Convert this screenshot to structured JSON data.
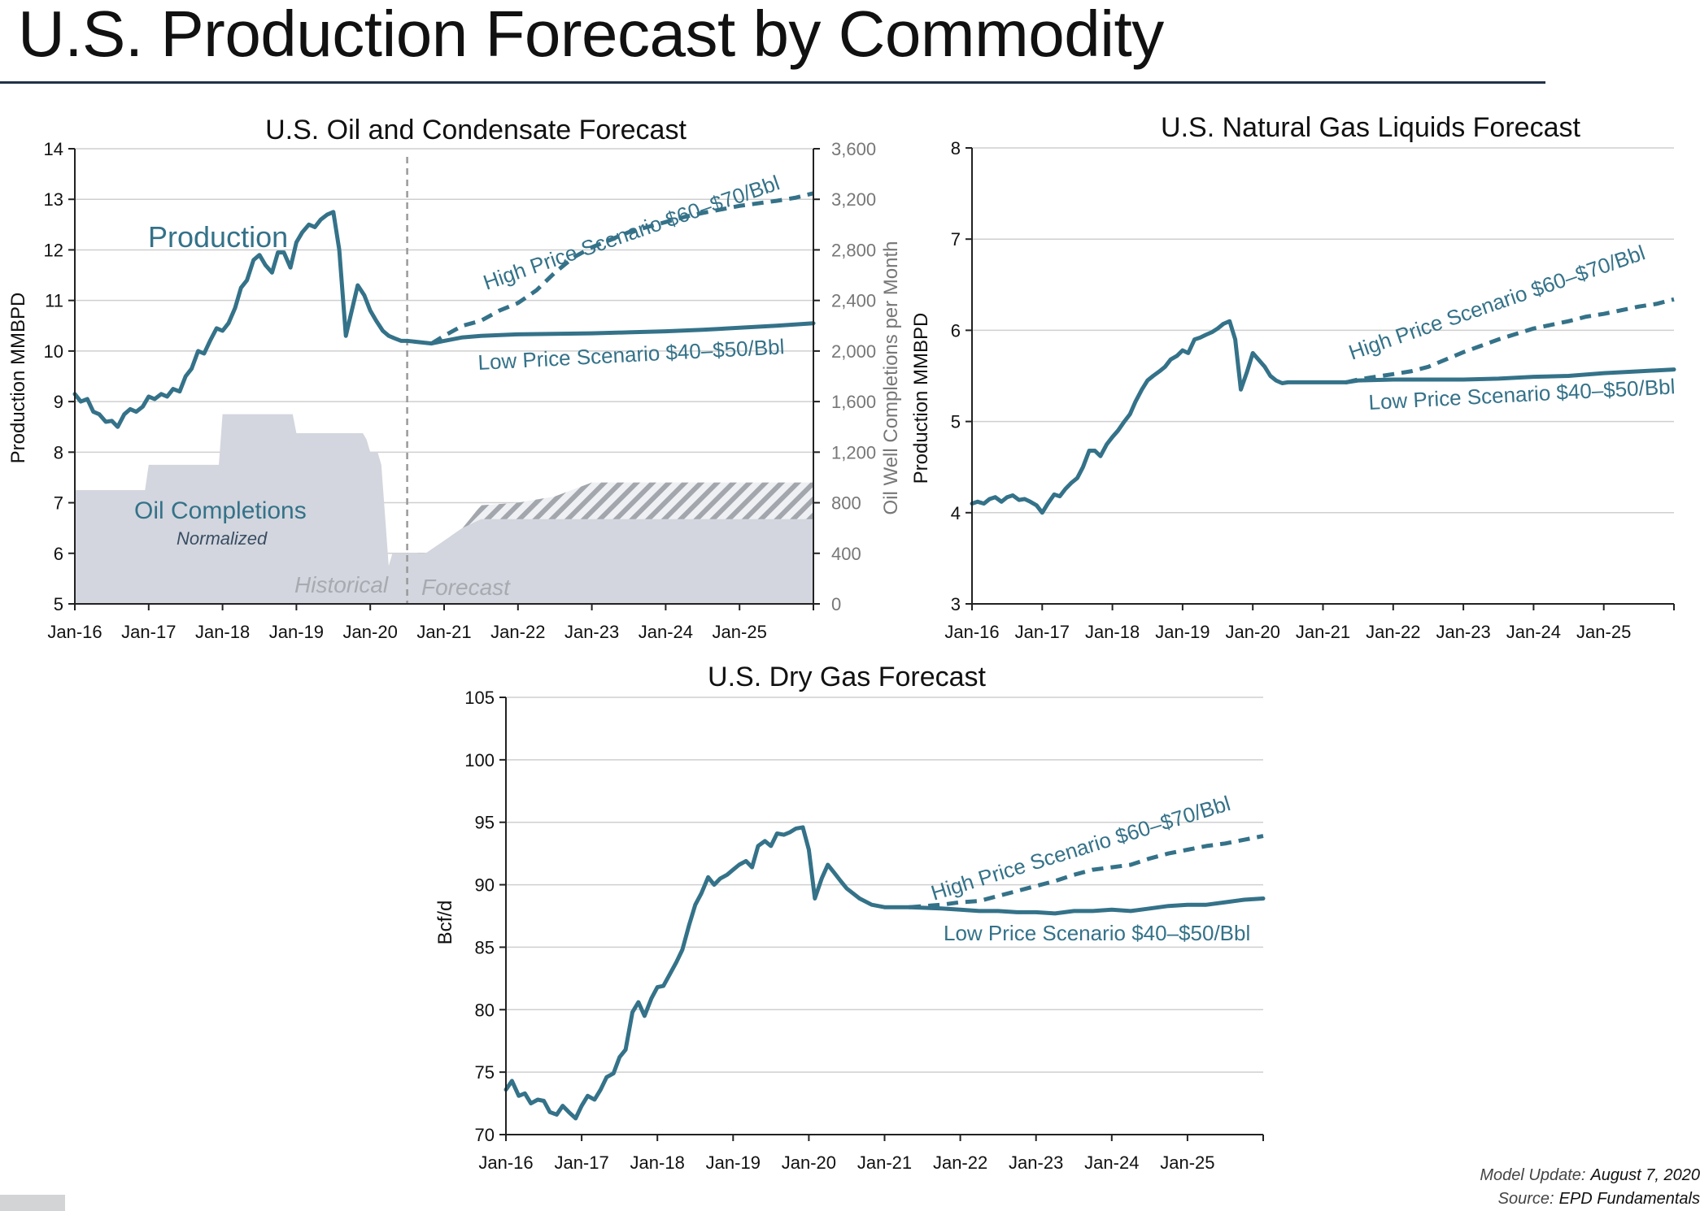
{
  "page": {
    "title": "U.S. Production Forecast by Commodity",
    "footer": {
      "model_update_label": "Model Update:",
      "model_update_value": "August 7, 2020",
      "source_label": "Source:",
      "source_value": "EPD Fundamentals"
    },
    "colors": {
      "series": "#347289",
      "completions_area": "#d3d6de",
      "hatch": "#a3a7ad",
      "title_rule": "#1f3247"
    }
  },
  "chart_data": [
    {
      "id": "oil",
      "type": "line",
      "title": "U.S. Oil and Condensate Forecast",
      "ylabel": "Production MMBPD",
      "ylim": [
        5,
        14
      ],
      "yticks": [
        "5",
        "6",
        "7",
        "8",
        "9",
        "10",
        "11",
        "12",
        "13",
        "14"
      ],
      "y2label": "Oil Well Completions per Month",
      "y2lim": [
        0,
        3600
      ],
      "y2ticks": [
        "0",
        "400",
        "800",
        "1,200",
        "1,600",
        "2,000",
        "2,400",
        "2,800",
        "3,200",
        "3,600"
      ],
      "xlim": [
        2016,
        2026
      ],
      "xticks": [
        "Jan-16",
        "Jan-17",
        "Jan-18",
        "Jan-19",
        "Jan-20",
        "Jan-21",
        "Jan-22",
        "Jan-23",
        "Jan-24",
        "Jan-25"
      ],
      "grid": true,
      "divider_x": 2020.5,
      "annotations": {
        "production": "Production",
        "completions": "Oil Completions",
        "completions_sub": "Normalized",
        "historical": "Historical",
        "forecast": "Forecast",
        "high": "High Price Scenario $60–$70/Bbl",
        "low": "Low Price Scenario $40–$50/Bbl"
      },
      "series": [
        {
          "role": "history",
          "x": [
            2016.0,
            2016.08,
            2016.17,
            2016.25,
            2016.33,
            2016.42,
            2016.5,
            2016.58,
            2016.67,
            2016.75,
            2016.83,
            2016.92,
            2017.0,
            2017.08,
            2017.17,
            2017.25,
            2017.33,
            2017.42,
            2017.5,
            2017.58,
            2017.67,
            2017.75,
            2017.83,
            2017.92,
            2018.0,
            2018.08,
            2018.17,
            2018.25,
            2018.33,
            2018.42,
            2018.5,
            2018.58,
            2018.67,
            2018.75,
            2018.83,
            2018.92,
            2019.0,
            2019.08,
            2019.17,
            2019.25,
            2019.33,
            2019.42,
            2019.5,
            2019.58,
            2019.67,
            2019.75,
            2019.83,
            2019.92,
            2020.0,
            2020.08,
            2020.17,
            2020.25,
            2020.33,
            2020.42,
            2020.5
          ],
          "values": [
            9.15,
            9.0,
            9.05,
            8.8,
            8.75,
            8.6,
            8.62,
            8.5,
            8.75,
            8.85,
            8.8,
            8.9,
            9.1,
            9.05,
            9.15,
            9.1,
            9.25,
            9.2,
            9.5,
            9.65,
            10.0,
            9.95,
            10.2,
            10.45,
            10.4,
            10.55,
            10.85,
            11.25,
            11.4,
            11.8,
            11.9,
            11.7,
            11.55,
            11.95,
            11.95,
            11.65,
            12.15,
            12.35,
            12.5,
            12.45,
            12.6,
            12.7,
            12.75,
            12.0,
            10.3,
            10.8,
            11.3,
            11.1,
            10.8,
            10.6,
            10.4,
            10.3,
            10.25,
            10.2,
            10.2
          ]
        },
        {
          "role": "low",
          "name": "Low Price Scenario $40–$50/Bbl",
          "x": [
            2020.5,
            2020.83,
            2021.0,
            2021.25,
            2021.5,
            2022.0,
            2022.5,
            2023.0,
            2023.5,
            2024.0,
            2024.5,
            2025.0,
            2025.5,
            2026.0
          ],
          "values": [
            10.2,
            10.15,
            10.2,
            10.27,
            10.3,
            10.33,
            10.34,
            10.35,
            10.37,
            10.39,
            10.42,
            10.46,
            10.5,
            10.55
          ]
        },
        {
          "role": "high",
          "name": "High Price Scenario $60–$70/Bbl",
          "x": [
            2020.83,
            2021.0,
            2021.25,
            2021.5,
            2021.75,
            2022.0,
            2022.25,
            2022.5,
            2022.75,
            2023.0,
            2023.25,
            2023.5,
            2023.75,
            2024.0,
            2024.25,
            2024.5,
            2024.75,
            2025.0,
            2025.25,
            2025.5,
            2025.75,
            2026.0
          ],
          "values": [
            10.15,
            10.3,
            10.5,
            10.6,
            10.8,
            10.95,
            11.2,
            11.55,
            11.85,
            12.05,
            12.2,
            12.35,
            12.45,
            12.55,
            12.65,
            12.73,
            12.8,
            12.87,
            12.92,
            12.97,
            13.03,
            13.12
          ]
        },
        {
          "role": "completions_history",
          "name": "Oil Completions",
          "x": [
            2016.0,
            2016.95,
            2017.0,
            2017.95,
            2018.0,
            2018.95,
            2019.0,
            2019.9,
            2019.95,
            2020.0,
            2020.1,
            2020.15,
            2020.25,
            2020.3,
            2020.5
          ],
          "values": [
            900,
            900,
            1100,
            1100,
            1500,
            1500,
            1350,
            1350,
            1300,
            1200,
            1200,
            1100,
            300,
            400,
            400
          ]
        },
        {
          "role": "completions_low",
          "x": [
            2020.5,
            2020.75,
            2021.0,
            2021.25,
            2021.5,
            2026.0
          ],
          "values": [
            400,
            400,
            500,
            600,
            670,
            670
          ]
        },
        {
          "role": "completions_high",
          "x": [
            2020.5,
            2020.75,
            2021.0,
            2021.25,
            2021.5,
            2022.0,
            2022.5,
            2023.0,
            2026.0
          ],
          "values": [
            400,
            400,
            500,
            600,
            780,
            800,
            850,
            960,
            960
          ]
        }
      ]
    },
    {
      "id": "ngl",
      "type": "line",
      "title": "U.S. Natural Gas Liquids Forecast",
      "ylabel": "Production MMBPD",
      "ylim": [
        3,
        8
      ],
      "yticks": [
        "3",
        "4",
        "5",
        "6",
        "7",
        "8"
      ],
      "xlim": [
        2016,
        2026
      ],
      "xticks": [
        "Jan-16",
        "Jan-17",
        "Jan-18",
        "Jan-19",
        "Jan-20",
        "Jan-21",
        "Jan-22",
        "Jan-23",
        "Jan-24",
        "Jan-25"
      ],
      "grid": true,
      "annotations": {
        "high": "High Price Scenario $60–$70/Bbl",
        "low": "Low Price Scenario $40–$50/Bbl"
      },
      "series": [
        {
          "role": "history",
          "x": [
            2016.0,
            2016.08,
            2016.17,
            2016.25,
            2016.33,
            2016.42,
            2016.5,
            2016.58,
            2016.67,
            2016.75,
            2016.83,
            2016.92,
            2017.0,
            2017.08,
            2017.17,
            2017.25,
            2017.33,
            2017.42,
            2017.5,
            2017.58,
            2017.67,
            2017.75,
            2017.83,
            2017.92,
            2018.0,
            2018.08,
            2018.17,
            2018.25,
            2018.33,
            2018.42,
            2018.5,
            2018.58,
            2018.67,
            2018.75,
            2018.83,
            2018.92,
            2019.0,
            2019.08,
            2019.17,
            2019.25,
            2019.33,
            2019.42,
            2019.5,
            2019.58,
            2019.67,
            2019.75,
            2019.83,
            2019.92,
            2020.0,
            2020.08,
            2020.17,
            2020.25,
            2020.33,
            2020.42,
            2020.5,
            2020.67,
            2020.83,
            2021.0,
            2021.17,
            2021.33
          ],
          "values": [
            4.1,
            4.12,
            4.1,
            4.15,
            4.17,
            4.12,
            4.17,
            4.19,
            4.14,
            4.15,
            4.12,
            4.08,
            4.0,
            4.1,
            4.2,
            4.18,
            4.26,
            4.33,
            4.38,
            4.5,
            4.68,
            4.68,
            4.62,
            4.75,
            4.83,
            4.9,
            5.0,
            5.08,
            5.22,
            5.35,
            5.45,
            5.5,
            5.55,
            5.6,
            5.68,
            5.72,
            5.78,
            5.75,
            5.9,
            5.92,
            5.95,
            5.98,
            6.02,
            6.07,
            6.1,
            5.9,
            5.35,
            5.55,
            5.75,
            5.68,
            5.6,
            5.5,
            5.45,
            5.42,
            5.43,
            5.43,
            5.43,
            5.43,
            5.43,
            5.43
          ]
        },
        {
          "role": "low",
          "name": "Low Price Scenario $40–$50/Bbl",
          "x": [
            2021.33,
            2021.5,
            2022.0,
            2022.5,
            2023.0,
            2023.5,
            2024.0,
            2024.5,
            2025.0,
            2025.5,
            2026.0
          ],
          "values": [
            5.43,
            5.45,
            5.46,
            5.46,
            5.46,
            5.47,
            5.49,
            5.5,
            5.53,
            5.55,
            5.57
          ]
        },
        {
          "role": "high",
          "name": "High Price Scenario $60–$70/Bbl",
          "x": [
            2021.33,
            2021.5,
            2021.75,
            2022.0,
            2022.25,
            2022.5,
            2022.75,
            2023.0,
            2023.25,
            2023.5,
            2023.75,
            2024.0,
            2024.25,
            2024.5,
            2024.75,
            2025.0,
            2025.25,
            2025.5,
            2025.75,
            2026.0
          ],
          "values": [
            5.43,
            5.46,
            5.49,
            5.52,
            5.55,
            5.6,
            5.68,
            5.76,
            5.83,
            5.9,
            5.96,
            6.02,
            6.06,
            6.1,
            6.15,
            6.18,
            6.22,
            6.26,
            6.29,
            6.34
          ]
        }
      ]
    },
    {
      "id": "dry",
      "type": "line",
      "title": "U.S. Dry Gas Forecast",
      "ylabel": "Bcf/d",
      "ylim": [
        70,
        105
      ],
      "yticks": [
        "70",
        "75",
        "80",
        "85",
        "90",
        "95",
        "100",
        "105"
      ],
      "xlim": [
        2016,
        2026
      ],
      "xticks": [
        "Jan-16",
        "Jan-17",
        "Jan-18",
        "Jan-19",
        "Jan-20",
        "Jan-21",
        "Jan-22",
        "Jan-23",
        "Jan-24",
        "Jan-25"
      ],
      "grid": true,
      "annotations": {
        "high": "High Price Scenario $60–$70/Bbl",
        "low": "Low Price Scenario $40–$50/Bbl"
      },
      "series": [
        {
          "role": "history",
          "x": [
            2016.0,
            2016.08,
            2016.17,
            2016.25,
            2016.33,
            2016.42,
            2016.5,
            2016.58,
            2016.67,
            2016.75,
            2016.83,
            2016.92,
            2017.0,
            2017.08,
            2017.17,
            2017.25,
            2017.33,
            2017.42,
            2017.5,
            2017.58,
            2017.67,
            2017.75,
            2017.83,
            2017.92,
            2018.0,
            2018.08,
            2018.17,
            2018.25,
            2018.33,
            2018.42,
            2018.5,
            2018.58,
            2018.67,
            2018.75,
            2018.83,
            2018.92,
            2019.0,
            2019.08,
            2019.17,
            2019.25,
            2019.33,
            2019.42,
            2019.5,
            2019.58,
            2019.67,
            2019.75,
            2019.83,
            2019.92,
            2020.0,
            2020.08,
            2020.17,
            2020.25,
            2020.33,
            2020.42,
            2020.5,
            2020.67,
            2020.83,
            2021.0,
            2021.17,
            2021.33
          ],
          "values": [
            73.6,
            74.3,
            73.1,
            73.3,
            72.5,
            72.8,
            72.7,
            71.8,
            71.6,
            72.3,
            71.8,
            71.3,
            72.3,
            73.1,
            72.8,
            73.6,
            74.6,
            74.9,
            76.2,
            76.8,
            79.8,
            80.6,
            79.5,
            80.9,
            81.8,
            81.9,
            82.9,
            83.8,
            84.8,
            86.8,
            88.4,
            89.3,
            90.6,
            90.0,
            90.5,
            90.8,
            91.2,
            91.6,
            91.9,
            91.4,
            93.1,
            93.5,
            93.1,
            94.1,
            94.0,
            94.2,
            94.5,
            94.6,
            92.8,
            88.9,
            90.5,
            91.6,
            91.0,
            90.3,
            89.7,
            88.9,
            88.4,
            88.2,
            88.2,
            88.2
          ]
        },
        {
          "role": "low",
          "name": "Low Price Scenario $40–$50/Bbl",
          "x": [
            2021.33,
            2021.75,
            2022.0,
            2022.25,
            2022.5,
            2022.75,
            2023.0,
            2023.25,
            2023.5,
            2023.75,
            2024.0,
            2024.25,
            2024.5,
            2024.75,
            2025.0,
            2025.25,
            2025.5,
            2025.75,
            2026.0
          ],
          "values": [
            88.2,
            88.1,
            88.0,
            87.9,
            87.9,
            87.8,
            87.8,
            87.7,
            87.9,
            87.9,
            88.0,
            87.9,
            88.1,
            88.3,
            88.4,
            88.4,
            88.6,
            88.8,
            88.9
          ]
        },
        {
          "role": "high",
          "name": "High Price Scenario $60–$70/Bbl",
          "x": [
            2021.33,
            2021.75,
            2022.0,
            2022.25,
            2022.5,
            2022.75,
            2023.0,
            2023.25,
            2023.5,
            2023.75,
            2024.0,
            2024.25,
            2024.5,
            2024.75,
            2025.0,
            2025.25,
            2025.5,
            2025.75,
            2026.0
          ],
          "values": [
            88.2,
            88.4,
            88.6,
            88.7,
            89.1,
            89.5,
            89.9,
            90.3,
            90.8,
            91.2,
            91.4,
            91.6,
            92.1,
            92.5,
            92.8,
            93.1,
            93.3,
            93.6,
            93.9
          ]
        }
      ]
    }
  ]
}
